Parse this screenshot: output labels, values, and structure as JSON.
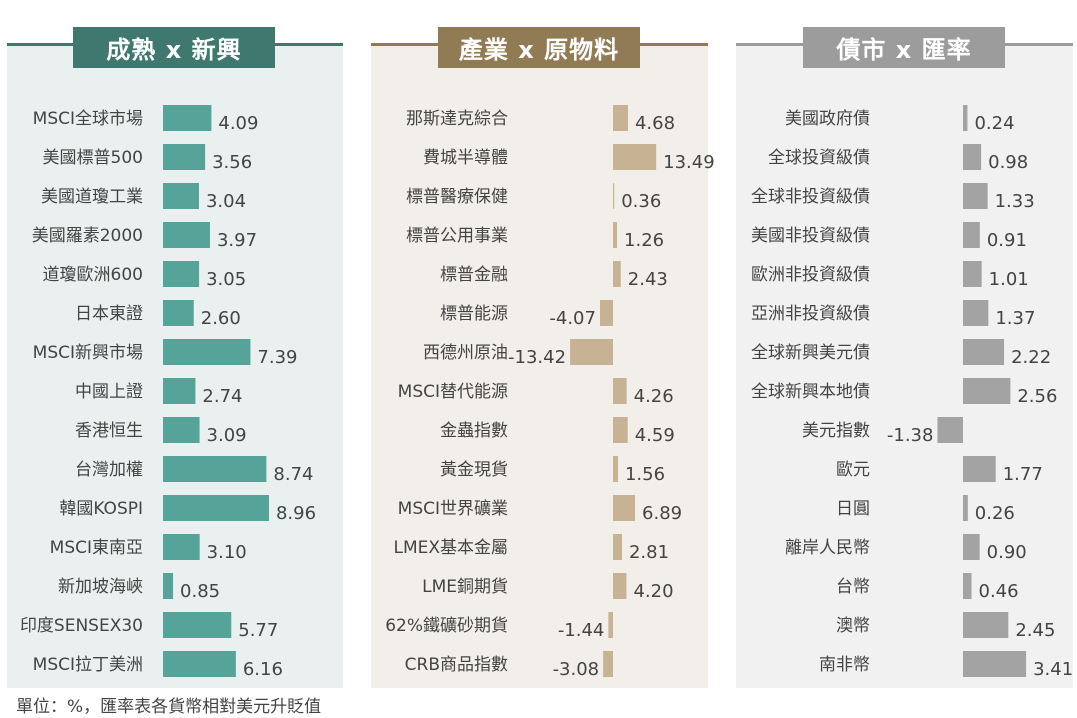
{
  "footnote": "單位：%，匯率表各貨幣相對美元升貶值",
  "colors": {
    "bar_0": "#55a399",
    "title_0": "#3e786f",
    "bg_0": "#eaf0ef",
    "bar_1": "#c7b393",
    "title_1": "#917b55",
    "bg_1": "#f2efea",
    "bar_2": "#a3a3a3",
    "title_2": "#9c9c9c",
    "bg_2": "#f1f1f1"
  },
  "chart_data": [
    {
      "type": "bar",
      "title": "成熟 x 新興",
      "categories": [
        "MSCI全球市場",
        "美國標普500",
        "美國道瓊工業",
        "美國羅素2000",
        "道瓊歐洲600",
        "日本東證",
        "MSCI新興市場",
        "中國上證",
        "香港恒生",
        "台灣加權",
        "韓國KOSPI",
        "MSCI東南亞",
        "新加坡海峽",
        "印度SENSEX30",
        "MSCI拉丁美洲"
      ],
      "values": [
        4.09,
        3.56,
        3.04,
        3.97,
        3.05,
        2.6,
        7.39,
        2.74,
        3.09,
        8.74,
        8.96,
        3.1,
        0.85,
        5.77,
        6.16
      ],
      "labels": [
        "4.09",
        "3.56",
        "3.04",
        "3.97",
        "3.05",
        "2.60",
        "7.39",
        "2.74",
        "3.09",
        "8.74",
        "8.96",
        "3.10",
        "0.85",
        "5.77",
        "6.16"
      ],
      "xlim": [
        0,
        9
      ]
    },
    {
      "type": "bar",
      "title": "產業 x 原物料",
      "categories": [
        "那斯達克綜合",
        "費城半導體",
        "標普醫療保健",
        "標普公用事業",
        "標普金融",
        "標普能源",
        "西德州原油",
        "MSCI替代能源",
        "金蟲指數",
        "黃金現貨",
        "MSCI世界礦業",
        "LMEX基本金屬",
        "LME銅期貨",
        "62%鐵礦砂期貨",
        "CRB商品指數"
      ],
      "values": [
        4.68,
        13.49,
        0.36,
        1.26,
        2.43,
        -4.07,
        -13.42,
        4.26,
        4.59,
        1.56,
        6.89,
        2.81,
        4.2,
        -1.44,
        -3.08
      ],
      "labels": [
        "4.68",
        "13.49",
        "0.36",
        "1.26",
        "2.43",
        "-4.07",
        "-13.42",
        "4.26",
        "4.59",
        "1.56",
        "6.89",
        "2.81",
        "4.20",
        "-1.44",
        "-3.08"
      ],
      "xlim": [
        -13.5,
        13.5
      ]
    },
    {
      "type": "bar",
      "title": "債市 x 匯率",
      "categories": [
        "美國政府債",
        "全球投資級債",
        "全球非投資級債",
        "美國非投資級債",
        "歐洲非投資級債",
        "亞洲非投資級債",
        "全球新興美元債",
        "全球新興本地債",
        "美元指數",
        "歐元",
        "日圓",
        "離岸人民幣",
        "台幣",
        "澳幣",
        "南非幣"
      ],
      "values": [
        0.24,
        0.98,
        1.33,
        0.91,
        1.01,
        1.37,
        2.22,
        2.56,
        -1.38,
        1.77,
        0.26,
        0.9,
        0.46,
        2.45,
        3.41
      ],
      "labels": [
        "0.24",
        "0.98",
        "1.33",
        "0.91",
        "1.01",
        "1.37",
        "2.22",
        "2.56",
        "-1.38",
        "1.77",
        "0.26",
        "0.90",
        "0.46",
        "2.45",
        "3.41"
      ],
      "xlim": [
        -1.4,
        3.5
      ]
    }
  ]
}
